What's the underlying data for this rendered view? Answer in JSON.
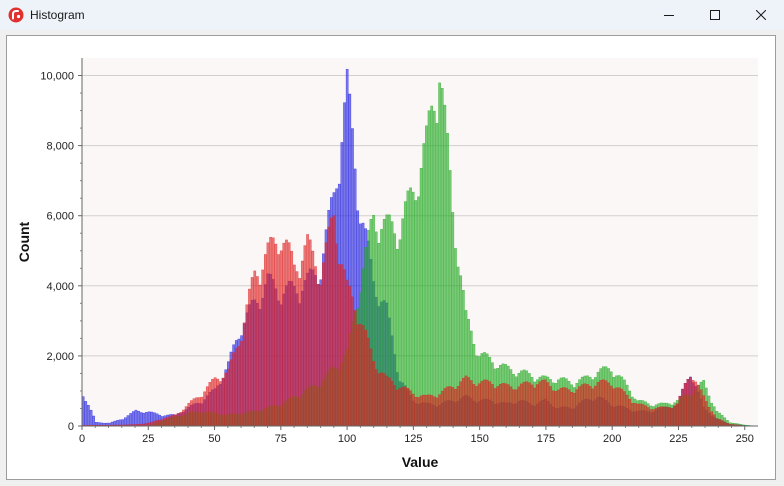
{
  "window": {
    "title": "Histogram",
    "icon": "app-logo-icon",
    "controls": [
      "minimize-icon",
      "maximize-icon",
      "close-icon"
    ]
  },
  "chart_data": {
    "type": "bar",
    "title": "",
    "xlabel": "Value",
    "ylabel": "Count",
    "xlim": [
      0,
      255
    ],
    "ylim": [
      0,
      10500
    ],
    "xticks": [
      0,
      25,
      50,
      75,
      100,
      125,
      150,
      175,
      200,
      225,
      250
    ],
    "xtick_labels": [
      "0",
      "25",
      "50",
      "75",
      "100",
      "125",
      "150",
      "175",
      "200",
      "225",
      "250"
    ],
    "yticks": [
      0,
      2000,
      4000,
      6000,
      8000,
      10000
    ],
    "ytick_labels": [
      "0",
      "2,000",
      "4,000",
      "6,000",
      "8,000",
      "10,000"
    ],
    "grid": true,
    "legend": false,
    "x": [
      0,
      5,
      10,
      15,
      20,
      25,
      30,
      35,
      40,
      45,
      50,
      55,
      60,
      65,
      70,
      75,
      80,
      85,
      90,
      95,
      100,
      105,
      110,
      115,
      120,
      125,
      130,
      135,
      140,
      145,
      150,
      155,
      160,
      165,
      170,
      175,
      180,
      185,
      190,
      195,
      200,
      205,
      210,
      215,
      220,
      225,
      230,
      235,
      240,
      245,
      250,
      255
    ],
    "series": [
      {
        "name": "Blue",
        "color": "#2222dd",
        "values": [
          900,
          100,
          80,
          200,
          420,
          380,
          300,
          300,
          500,
          700,
          1000,
          1700,
          2800,
          3400,
          4000,
          3700,
          3800,
          4000,
          4400,
          6400,
          9300,
          6000,
          4000,
          3200,
          1300,
          700,
          600,
          600,
          700,
          800,
          700,
          700,
          600,
          700,
          600,
          700,
          500,
          500,
          700,
          800,
          600,
          500,
          400,
          400,
          500,
          600,
          1500,
          500,
          200,
          50,
          20,
          0
        ]
      },
      {
        "name": "Green",
        "color": "#22aa22",
        "values": [
          0,
          0,
          0,
          0,
          0,
          0,
          150,
          250,
          350,
          400,
          350,
          300,
          350,
          400,
          500,
          600,
          800,
          1000,
          1200,
          1600,
          2000,
          4000,
          5800,
          5500,
          5500,
          6500,
          7800,
          10000,
          6000,
          3000,
          2000,
          1800,
          1600,
          1500,
          1400,
          1300,
          1300,
          1200,
          1300,
          1500,
          1600,
          1200,
          700,
          600,
          600,
          700,
          900,
          1200,
          400,
          100,
          30,
          0
        ]
      },
      {
        "name": "Red",
        "color": "#dd2222",
        "values": [
          20,
          20,
          20,
          30,
          40,
          80,
          200,
          300,
          600,
          900,
          1300,
          1500,
          2600,
          4200,
          4800,
          5300,
          4400,
          5000,
          4200,
          5800,
          3800,
          3000,
          1800,
          1300,
          1100,
          900,
          800,
          900,
          1100,
          1300,
          1200,
          1200,
          1100,
          1100,
          1200,
          1200,
          1000,
          1000,
          1100,
          1200,
          1200,
          900,
          600,
          500,
          500,
          600,
          1500,
          800,
          200,
          50,
          10,
          0
        ]
      }
    ]
  }
}
